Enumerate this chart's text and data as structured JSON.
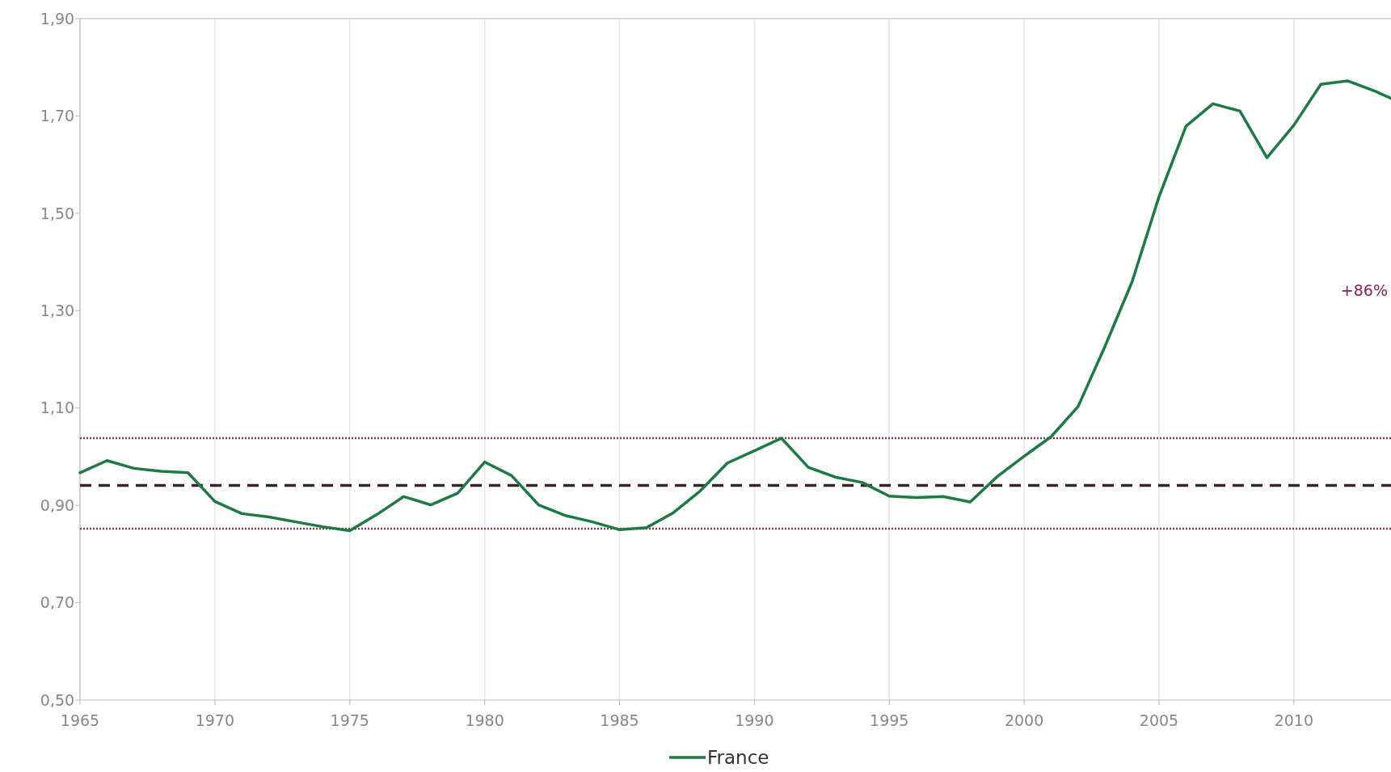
{
  "chart_data": {
    "type": "line",
    "x": [
      1965,
      1966,
      1967,
      1968,
      1969,
      1970,
      1971,
      1972,
      1973,
      1974,
      1975,
      1976,
      1977,
      1978,
      1979,
      1980,
      1981,
      1982,
      1983,
      1984,
      1985,
      1986,
      1987,
      1988,
      1989,
      1990,
      1991,
      1992,
      1993,
      1994,
      1995,
      1996,
      1997,
      1998,
      1999,
      2000,
      2001,
      2002,
      2003,
      2004,
      2005,
      2006,
      2007,
      2008,
      2009,
      2010,
      2011,
      2012,
      2013,
      2013.6
    ],
    "series": [
      {
        "name": "France",
        "color": "#1e7a45",
        "values": [
          0.967,
          0.992,
          0.976,
          0.97,
          0.967,
          0.908,
          0.883,
          0.876,
          0.866,
          0.856,
          0.848,
          0.881,
          0.918,
          0.901,
          0.925,
          0.989,
          0.961,
          0.901,
          0.879,
          0.866,
          0.85,
          0.854,
          0.885,
          0.93,
          0.987,
          1.012,
          1.038,
          0.978,
          0.958,
          0.947,
          0.919,
          0.916,
          0.918,
          0.907,
          0.959,
          1.001,
          1.041,
          1.103,
          1.227,
          1.359,
          1.534,
          1.679,
          1.725,
          1.71,
          1.614,
          1.681,
          1.765,
          1.772,
          1.751,
          1.736
        ]
      }
    ],
    "xlim": [
      1965,
      2013.6
    ],
    "xticks": [
      1965,
      1970,
      1975,
      1980,
      1985,
      1990,
      1995,
      2000,
      2005,
      2010
    ],
    "ylim": [
      0.5,
      1.9
    ],
    "yticks": [
      {
        "value": 0.5,
        "label": "0,50"
      },
      {
        "value": 0.7,
        "label": "0,70"
      },
      {
        "value": 0.9,
        "label": "0,90"
      },
      {
        "value": 1.1,
        "label": "1,10"
      },
      {
        "value": 1.3,
        "label": "1,30"
      },
      {
        "value": 1.5,
        "label": "1,50"
      },
      {
        "value": 1.7,
        "label": "1,70"
      },
      {
        "value": 1.9,
        "label": "1,90"
      }
    ],
    "ref_lines": [
      {
        "axis": "y",
        "value": 1.038,
        "color": "#7a3a48",
        "line_style": "dotted"
      },
      {
        "axis": "y",
        "value": 0.941,
        "color": "#3a2228",
        "line_style": "dashed"
      },
      {
        "axis": "y",
        "value": 0.852,
        "color": "#7a3a48",
        "line_style": "dotted"
      }
    ],
    "annotations": [
      "+86%"
    ],
    "grid": "x",
    "legend": "bottom",
    "marker": "none",
    "line_style": "solid"
  }
}
